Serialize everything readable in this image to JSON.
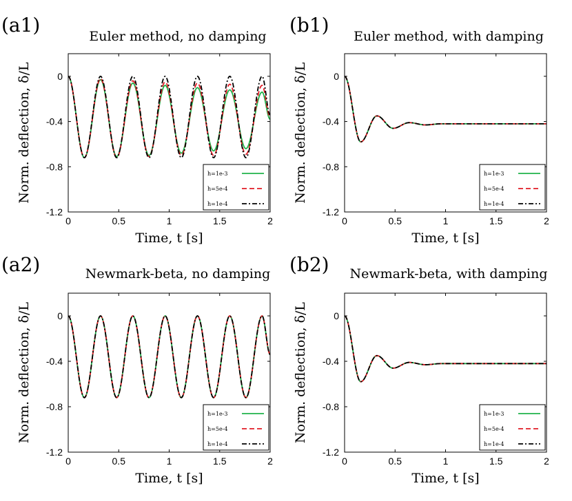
{
  "colors": {
    "h1": "#1fb24a",
    "h2": "#e01b24",
    "h3": "#000000"
  },
  "chart_data": [
    {
      "type": "line",
      "panel_label": "(a1)",
      "title": "Euler method, no damping",
      "xlabel": "Time, t [s]",
      "ylabel": "Norm. deflection, δ/L",
      "xlim": [
        0,
        2
      ],
      "ylim": [
        -1.2,
        0.2
      ],
      "xticks": [
        "0",
        "0.5",
        "1",
        "1.5",
        "2"
      ],
      "yticks": [
        "0",
        "-0.4",
        "-0.8",
        "-1.2"
      ],
      "legend_position": "bottom-right",
      "series": [
        {
          "name": "h=1e-3",
          "style": "solid",
          "points": [
            [
              0,
              0
            ],
            [
              0.16,
              -0.72
            ],
            [
              0.32,
              -0.03
            ],
            [
              0.48,
              -0.71
            ],
            [
              0.64,
              -0.06
            ],
            [
              0.8,
              -0.7
            ],
            [
              0.96,
              -0.08
            ],
            [
              1.12,
              -0.68
            ],
            [
              1.28,
              -0.1
            ],
            [
              1.44,
              -0.66
            ],
            [
              1.6,
              -0.12
            ],
            [
              1.76,
              -0.64
            ],
            [
              1.92,
              -0.14
            ],
            [
              2.0,
              -0.38
            ]
          ]
        },
        {
          "name": "h=5e-4",
          "style": "dashed",
          "points": [
            [
              0,
              0
            ],
            [
              0.16,
              -0.72
            ],
            [
              0.32,
              -0.02
            ],
            [
              0.48,
              -0.72
            ],
            [
              0.64,
              -0.04
            ],
            [
              0.8,
              -0.71
            ],
            [
              0.96,
              -0.05
            ],
            [
              1.12,
              -0.7
            ],
            [
              1.28,
              -0.06
            ],
            [
              1.44,
              -0.7
            ],
            [
              1.6,
              -0.07
            ],
            [
              1.76,
              -0.69
            ],
            [
              1.92,
              -0.08
            ],
            [
              2.0,
              -0.36
            ]
          ]
        },
        {
          "name": "h=1e-4",
          "style": "dashdot",
          "points": [
            [
              0,
              0
            ],
            [
              0.16,
              -0.72
            ],
            [
              0.32,
              0.0
            ],
            [
              0.48,
              -0.72
            ],
            [
              0.64,
              0.0
            ],
            [
              0.8,
              -0.72
            ],
            [
              0.96,
              0.0
            ],
            [
              1.12,
              -0.72
            ],
            [
              1.28,
              0.0
            ],
            [
              1.44,
              -0.72
            ],
            [
              1.6,
              0.0
            ],
            [
              1.76,
              -0.72
            ],
            [
              1.92,
              0.0
            ],
            [
              2.0,
              -0.34
            ]
          ]
        }
      ]
    },
    {
      "type": "line",
      "panel_label": "(b1)",
      "title": "Euler method, with damping",
      "xlabel": "Time, t [s]",
      "ylabel": "Norm. deflection, δ/L",
      "xlim": [
        0,
        2
      ],
      "ylim": [
        -1.2,
        0.2
      ],
      "xticks": [
        "0",
        "0.5",
        "1",
        "1.5",
        "2"
      ],
      "yticks": [
        "0",
        "-0.4",
        "-0.8",
        "-1.2"
      ],
      "legend_position": "bottom-right",
      "series": [
        {
          "name": "h=1e-3",
          "style": "solid",
          "points": [
            [
              0,
              0
            ],
            [
              0.16,
              -0.58
            ],
            [
              0.32,
              -0.35
            ],
            [
              0.48,
              -0.46
            ],
            [
              0.64,
              -0.41
            ],
            [
              0.8,
              -0.43
            ],
            [
              0.96,
              -0.42
            ],
            [
              1.2,
              -0.42
            ],
            [
              1.6,
              -0.42
            ],
            [
              2.0,
              -0.42
            ]
          ]
        },
        {
          "name": "h=5e-4",
          "style": "dashed",
          "points": [
            [
              0,
              0
            ],
            [
              0.16,
              -0.58
            ],
            [
              0.32,
              -0.35
            ],
            [
              0.48,
              -0.46
            ],
            [
              0.64,
              -0.41
            ],
            [
              0.8,
              -0.43
            ],
            [
              0.96,
              -0.42
            ],
            [
              1.2,
              -0.42
            ],
            [
              1.6,
              -0.42
            ],
            [
              2.0,
              -0.42
            ]
          ]
        },
        {
          "name": "h=1e-4",
          "style": "dashdot",
          "points": [
            [
              0,
              0
            ],
            [
              0.16,
              -0.58
            ],
            [
              0.32,
              -0.35
            ],
            [
              0.48,
              -0.46
            ],
            [
              0.64,
              -0.41
            ],
            [
              0.8,
              -0.43
            ],
            [
              0.96,
              -0.42
            ],
            [
              1.2,
              -0.42
            ],
            [
              1.6,
              -0.42
            ],
            [
              2.0,
              -0.42
            ]
          ]
        }
      ]
    },
    {
      "type": "line",
      "panel_label": "(a2)",
      "title": "Newmark-beta, no damping",
      "xlabel": "Time, t [s]",
      "ylabel": "Norm. deflection, δ/L",
      "xlim": [
        0,
        2
      ],
      "ylim": [
        -1.2,
        0.2
      ],
      "xticks": [
        "0",
        "0.5",
        "1",
        "1.5",
        "2"
      ],
      "yticks": [
        "0",
        "-0.4",
        "-0.8",
        "-1.2"
      ],
      "legend_position": "bottom-right",
      "series": [
        {
          "name": "h=1e-3",
          "style": "solid",
          "points": [
            [
              0,
              0
            ],
            [
              0.16,
              -0.72
            ],
            [
              0.32,
              0.0
            ],
            [
              0.48,
              -0.72
            ],
            [
              0.64,
              0.0
            ],
            [
              0.8,
              -0.72
            ],
            [
              0.96,
              0.0
            ],
            [
              1.12,
              -0.72
            ],
            [
              1.28,
              0.0
            ],
            [
              1.44,
              -0.72
            ],
            [
              1.6,
              0.0
            ],
            [
              1.76,
              -0.72
            ],
            [
              1.92,
              0.0
            ],
            [
              2.0,
              -0.34
            ]
          ]
        },
        {
          "name": "h=5e-4",
          "style": "dashed",
          "points": [
            [
              0,
              0
            ],
            [
              0.16,
              -0.72
            ],
            [
              0.32,
              0.0
            ],
            [
              0.48,
              -0.72
            ],
            [
              0.64,
              0.0
            ],
            [
              0.8,
              -0.72
            ],
            [
              0.96,
              0.0
            ],
            [
              1.12,
              -0.72
            ],
            [
              1.28,
              0.0
            ],
            [
              1.44,
              -0.72
            ],
            [
              1.6,
              0.0
            ],
            [
              1.76,
              -0.72
            ],
            [
              1.92,
              0.0
            ],
            [
              2.0,
              -0.34
            ]
          ]
        },
        {
          "name": "h=1e-4",
          "style": "dashdot",
          "points": [
            [
              0,
              0
            ],
            [
              0.16,
              -0.72
            ],
            [
              0.32,
              0.0
            ],
            [
              0.48,
              -0.72
            ],
            [
              0.64,
              0.0
            ],
            [
              0.8,
              -0.72
            ],
            [
              0.96,
              0.0
            ],
            [
              1.12,
              -0.72
            ],
            [
              1.28,
              0.0
            ],
            [
              1.44,
              -0.72
            ],
            [
              1.6,
              0.0
            ],
            [
              1.76,
              -0.72
            ],
            [
              1.92,
              0.0
            ],
            [
              2.0,
              -0.34
            ]
          ]
        }
      ]
    },
    {
      "type": "line",
      "panel_label": "(b2)",
      "title": "Newmark-beta, with damping",
      "xlabel": "Time, t [s]",
      "ylabel": "Norm. deflection, δ/L",
      "xlim": [
        0,
        2
      ],
      "ylim": [
        -1.2,
        0.2
      ],
      "xticks": [
        "0",
        "0.5",
        "1",
        "1.5",
        "2"
      ],
      "yticks": [
        "0",
        "-0.4",
        "-0.8",
        "-1.2"
      ],
      "legend_position": "bottom-right",
      "series": [
        {
          "name": "h=1e-3",
          "style": "solid",
          "points": [
            [
              0,
              0
            ],
            [
              0.16,
              -0.58
            ],
            [
              0.32,
              -0.35
            ],
            [
              0.48,
              -0.46
            ],
            [
              0.64,
              -0.41
            ],
            [
              0.8,
              -0.43
            ],
            [
              0.96,
              -0.42
            ],
            [
              1.2,
              -0.42
            ],
            [
              1.6,
              -0.42
            ],
            [
              2.0,
              -0.42
            ]
          ]
        },
        {
          "name": "h=5e-4",
          "style": "dashed",
          "points": [
            [
              0,
              0
            ],
            [
              0.16,
              -0.58
            ],
            [
              0.32,
              -0.35
            ],
            [
              0.48,
              -0.46
            ],
            [
              0.64,
              -0.41
            ],
            [
              0.8,
              -0.43
            ],
            [
              0.96,
              -0.42
            ],
            [
              1.2,
              -0.42
            ],
            [
              1.6,
              -0.42
            ],
            [
              2.0,
              -0.42
            ]
          ]
        },
        {
          "name": "h=1e-4",
          "style": "dashdot",
          "points": [
            [
              0,
              0
            ],
            [
              0.16,
              -0.58
            ],
            [
              0.32,
              -0.35
            ],
            [
              0.48,
              -0.46
            ],
            [
              0.64,
              -0.41
            ],
            [
              0.8,
              -0.43
            ],
            [
              0.96,
              -0.42
            ],
            [
              1.2,
              -0.42
            ],
            [
              1.6,
              -0.42
            ],
            [
              2.0,
              -0.42
            ]
          ]
        }
      ]
    }
  ]
}
